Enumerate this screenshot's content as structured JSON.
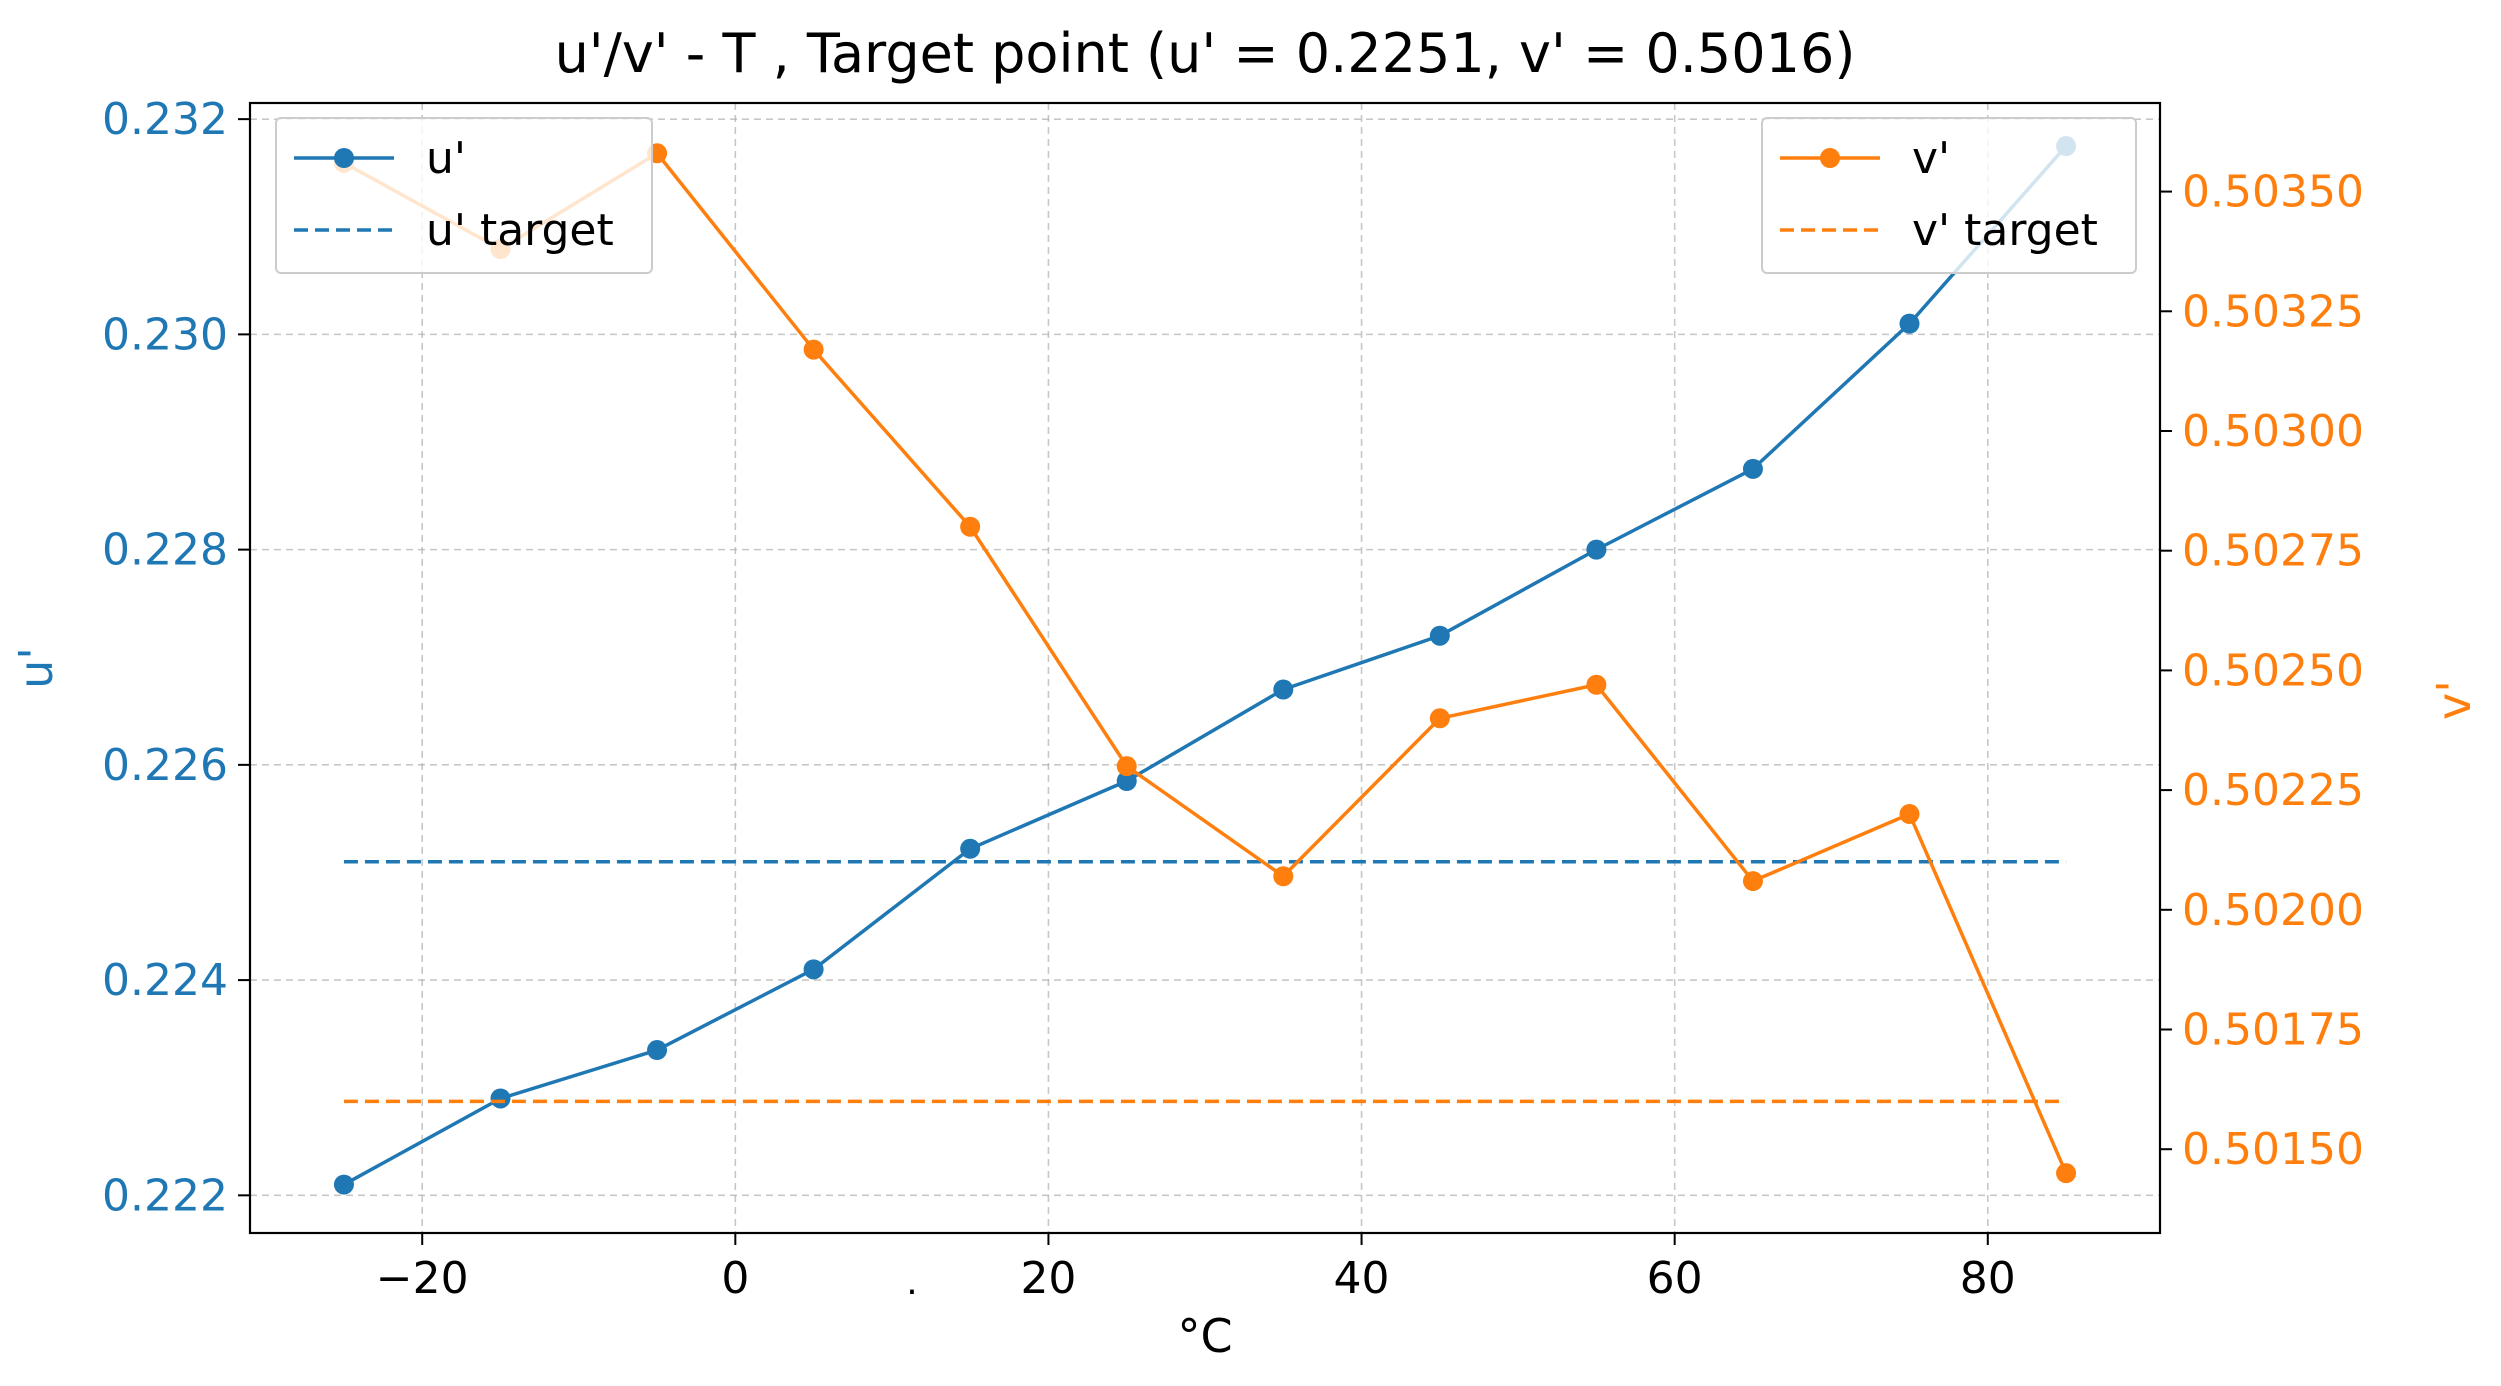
{
  "chart_data": {
    "type": "line",
    "title": "u'/v' - T ,  Target point (u' = 0.2251, v' = 0.5016)",
    "xlabel": "°C",
    "ylabel_left": "u'",
    "ylabel_right": "v'",
    "stray_mark": ".",
    "grid": true,
    "xlim": [
      -31,
      91
    ],
    "x_ticks": [
      -20,
      0,
      20,
      40,
      60,
      80
    ],
    "x_tick_labels": [
      "−20",
      "0",
      "20",
      "40",
      "60",
      "80"
    ],
    "y_left": {
      "lim": [
        0.22165,
        0.23215
      ],
      "ticks": [
        0.222,
        0.224,
        0.226,
        0.228,
        0.23,
        0.232
      ],
      "tick_labels": [
        "0.222",
        "0.224",
        "0.226",
        "0.228",
        "0.230",
        "0.232"
      ]
    },
    "y_right": {
      "lim": [
        0.501325,
        0.503685
      ],
      "ticks": [
        0.5015,
        0.50175,
        0.502,
        0.50225,
        0.5025,
        0.50275,
        0.503,
        0.50325,
        0.5035
      ],
      "tick_labels": [
        "0.50150",
        "0.50175",
        "0.50200",
        "0.50225",
        "0.50250",
        "0.50275",
        "0.50300",
        "0.50325",
        "0.50350"
      ]
    },
    "x": [
      -25,
      -15,
      -5,
      5,
      15,
      25,
      35,
      45,
      55,
      65,
      75,
      85
    ],
    "series": [
      {
        "name": "u'",
        "axis": "left",
        "color": "#1f77b4",
        "marker": "circle",
        "values": [
          0.2221,
          0.2229,
          0.22335,
          0.2241,
          0.22522,
          0.22585,
          0.2267,
          0.2272,
          0.228,
          0.22875,
          0.2301,
          0.23175
        ]
      },
      {
        "name": "u' target",
        "axis": "left",
        "color": "#1f77b4",
        "dashed": true,
        "value": 0.2251
      },
      {
        "name": "v'",
        "axis": "right",
        "color": "#ff7f0e",
        "marker": "circle",
        "values": [
          0.50356,
          0.50338,
          0.50358,
          0.50317,
          0.5028,
          0.5023,
          0.50207,
          0.5024,
          0.50247,
          0.50206,
          0.5022,
          0.50145
        ]
      },
      {
        "name": "v' target",
        "axis": "right",
        "color": "#ff7f0e",
        "dashed": true,
        "value": 0.5016
      }
    ],
    "legend_left": {
      "placement": "upper-left",
      "entries": [
        {
          "label": "u'",
          "color": "#1f77b4",
          "style": "line-marker"
        },
        {
          "label": "u' target",
          "color": "#1f77b4",
          "style": "dashed"
        }
      ]
    },
    "legend_right": {
      "placement": "upper-right",
      "entries": [
        {
          "label": "v'",
          "color": "#ff7f0e",
          "style": "line-marker"
        },
        {
          "label": "v' target",
          "color": "#ff7f0e",
          "style": "dashed"
        }
      ]
    },
    "colors": {
      "left_axis": "#1f77b4",
      "right_axis": "#ff7f0e",
      "grid": "#b0b0b0",
      "text": "#000000"
    }
  }
}
